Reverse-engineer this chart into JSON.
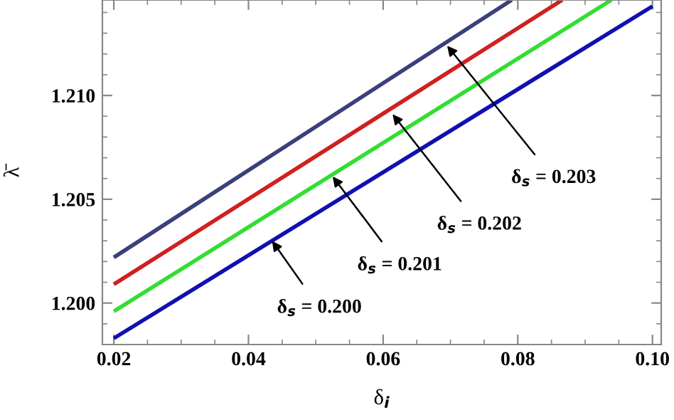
{
  "chart_data": {
    "type": "line",
    "xlabel": "δ$_{i}$",
    "ylabel": "λ̄",
    "xlim": [
      0.0183,
      0.1013
    ],
    "ylim": [
      1.198,
      1.2146
    ],
    "xticks": [
      {
        "value": 0.02,
        "label": "0.02"
      },
      {
        "value": 0.04,
        "label": "0.04"
      },
      {
        "value": 0.06,
        "label": "0.06"
      },
      {
        "value": 0.08,
        "label": "0.08"
      },
      {
        "value": 0.1,
        "label": "0.10"
      }
    ],
    "yticks": [
      {
        "value": 1.2,
        "label": "1.200"
      },
      {
        "value": 1.205,
        "label": "1.205"
      },
      {
        "value": 1.21,
        "label": "1.210"
      }
    ],
    "grid": false,
    "legend": false,
    "marker": "none",
    "line_style": "solid",
    "series": [
      {
        "color": "#1010b0",
        "x": [
          0.02,
          0.1
        ],
        "values": [
          1.1983,
          1.2143
        ]
      },
      {
        "color": "#33dd33",
        "x": [
          0.02,
          0.0939
        ],
        "values": [
          1.1996,
          1.2146
        ]
      },
      {
        "color": "#d02020",
        "x": [
          0.02,
          0.0866
        ],
        "values": [
          1.2009,
          1.2146
        ]
      },
      {
        "color": "#3b3f7a",
        "x": [
          0.02,
          0.0791
        ],
        "values": [
          1.2022,
          1.2146
        ]
      }
    ],
    "annotations": [
      {
        "text": "δ$_{s}$ = 0.200",
        "x": 0.0435,
        "y": 1.203
      },
      {
        "text": "δ$_{s}$ = 0.201",
        "x": 0.0525,
        "y": 1.2061
      },
      {
        "text": "δ$_{s}$ = 0.202",
        "x": 0.0614,
        "y": 1.2091
      },
      {
        "text": "δ$_{s}$ = 0.203",
        "x": 0.0695,
        "y": 1.2124
      }
    ]
  }
}
